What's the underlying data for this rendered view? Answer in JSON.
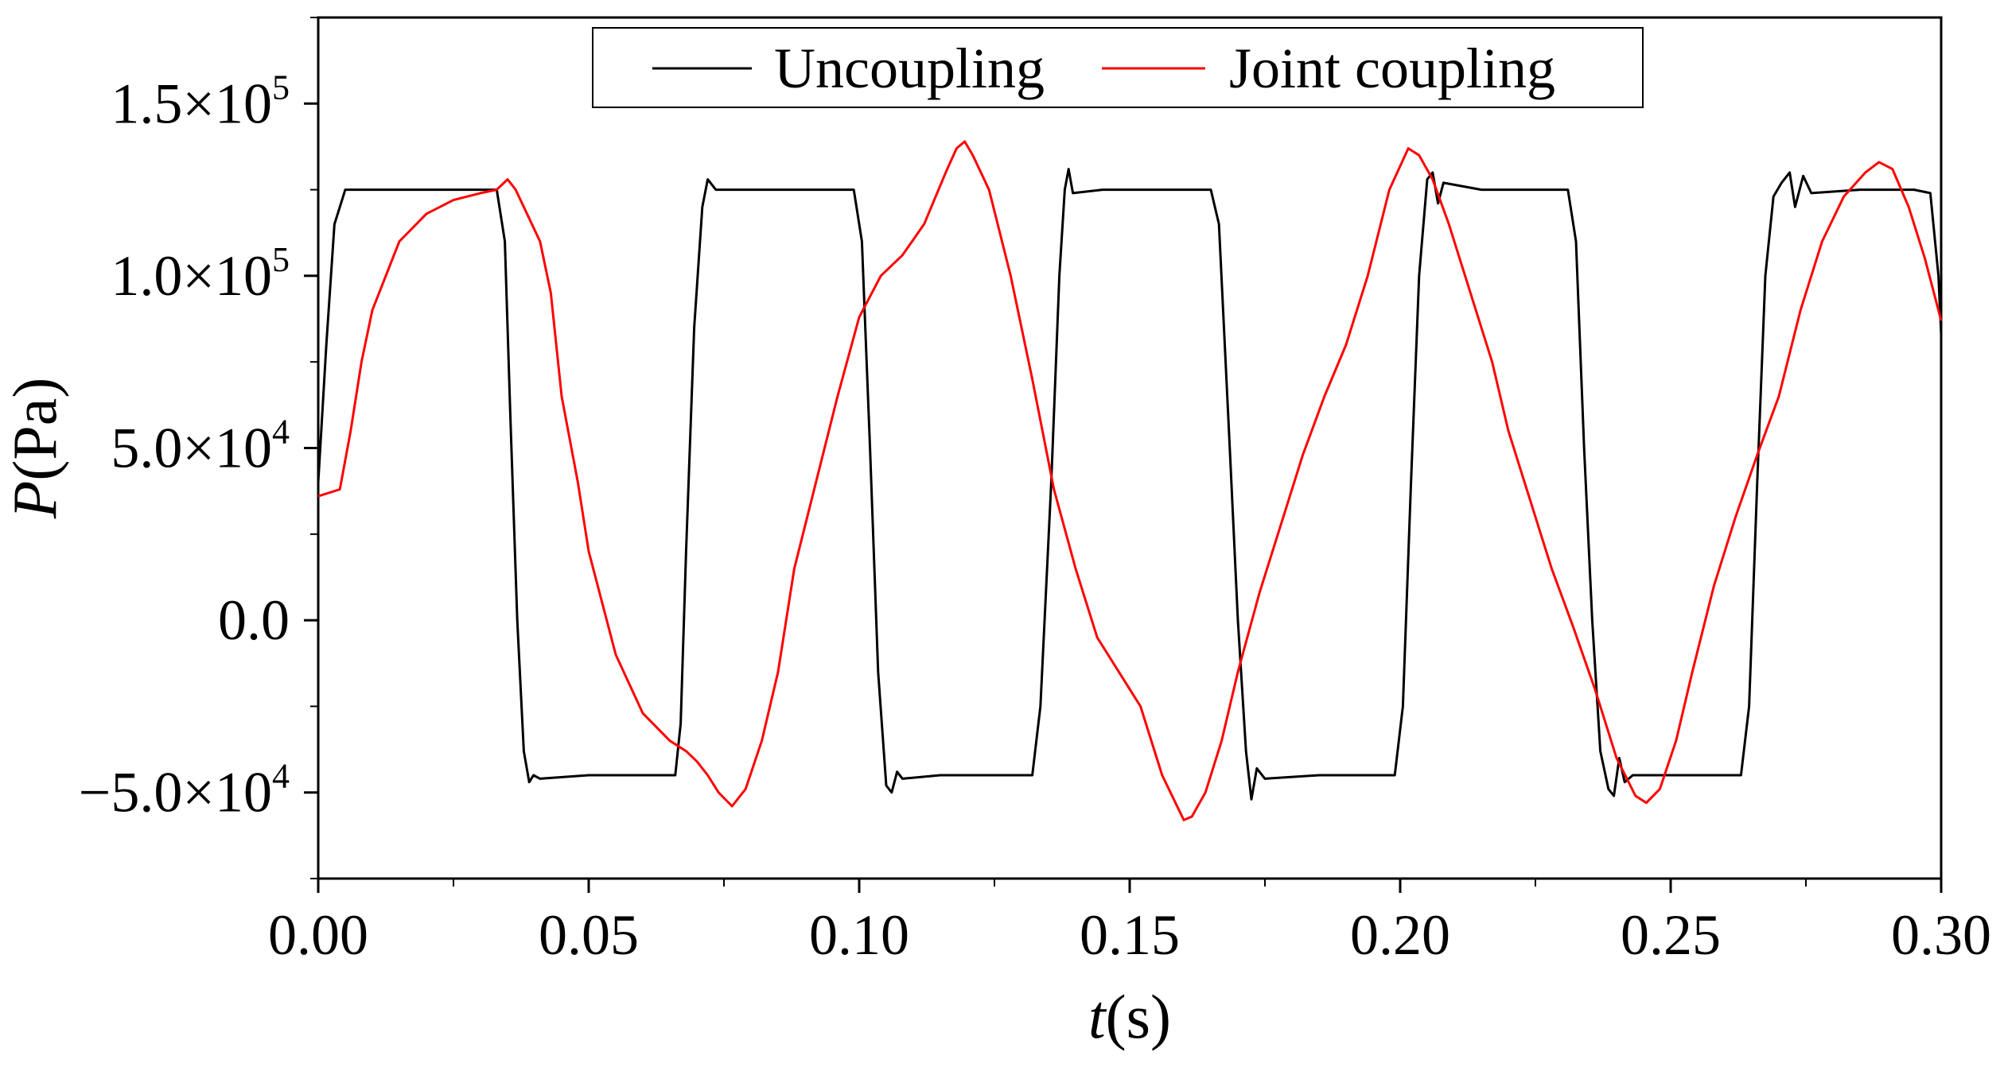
{
  "chart_data": {
    "type": "line",
    "title": "",
    "xlabel": {
      "var": "t",
      "unit": "(s)"
    },
    "ylabel": {
      "var": "P",
      "unit": "(Pa)"
    },
    "xlim": [
      0.0,
      0.3
    ],
    "ylim": [
      -75000,
      175000
    ],
    "x_ticks": [
      {
        "value": 0.0,
        "label": "0.00"
      },
      {
        "value": 0.05,
        "label": "0.05"
      },
      {
        "value": 0.1,
        "label": "0.10"
      },
      {
        "value": 0.15,
        "label": "0.15"
      },
      {
        "value": 0.2,
        "label": "0.20"
      },
      {
        "value": 0.25,
        "label": "0.25"
      },
      {
        "value": 0.3,
        "label": "0.30"
      }
    ],
    "y_ticks": [
      {
        "value": -50000,
        "mantissa": "−5.0×10",
        "exp": "4"
      },
      {
        "value": 0,
        "mantissa": "0.0",
        "exp": ""
      },
      {
        "value": 50000,
        "mantissa": "5.0×10",
        "exp": "4"
      },
      {
        "value": 100000,
        "mantissa": "1.0×10",
        "exp": "5"
      },
      {
        "value": 150000,
        "mantissa": "1.5×10",
        "exp": "5"
      }
    ],
    "grid": false,
    "legend_position": "top-center",
    "series": [
      {
        "name": "Uncoupling",
        "color": "#000000",
        "points": [
          [
            0.0,
            40000
          ],
          [
            0.0015,
            80000
          ],
          [
            0.003,
            115000
          ],
          [
            0.005,
            125000
          ],
          [
            0.01,
            125000
          ],
          [
            0.02,
            125000
          ],
          [
            0.03,
            125000
          ],
          [
            0.033,
            125000
          ],
          [
            0.0345,
            110000
          ],
          [
            0.0355,
            60000
          ],
          [
            0.0368,
            0
          ],
          [
            0.038,
            -38000
          ],
          [
            0.039,
            -47000
          ],
          [
            0.0398,
            -45000
          ],
          [
            0.041,
            -46000
          ],
          [
            0.05,
            -45000
          ],
          [
            0.06,
            -45000
          ],
          [
            0.066,
            -45000
          ],
          [
            0.067,
            -30000
          ],
          [
            0.068,
            20000
          ],
          [
            0.0695,
            85000
          ],
          [
            0.071,
            120000
          ],
          [
            0.072,
            128000
          ],
          [
            0.0735,
            125000
          ],
          [
            0.08,
            125000
          ],
          [
            0.09,
            125000
          ],
          [
            0.099,
            125000
          ],
          [
            0.1005,
            110000
          ],
          [
            0.102,
            50000
          ],
          [
            0.1035,
            -15000
          ],
          [
            0.105,
            -48000
          ],
          [
            0.106,
            -50000
          ],
          [
            0.107,
            -44000
          ],
          [
            0.108,
            -46000
          ],
          [
            0.115,
            -45000
          ],
          [
            0.125,
            -45000
          ],
          [
            0.132,
            -45000
          ],
          [
            0.1335,
            -25000
          ],
          [
            0.1355,
            40000
          ],
          [
            0.137,
            100000
          ],
          [
            0.138,
            125000
          ],
          [
            0.1387,
            131000
          ],
          [
            0.1395,
            124000
          ],
          [
            0.145,
            125000
          ],
          [
            0.155,
            125000
          ],
          [
            0.165,
            125000
          ],
          [
            0.1665,
            115000
          ],
          [
            0.1685,
            50000
          ],
          [
            0.17,
            0
          ],
          [
            0.1715,
            -38000
          ],
          [
            0.1725,
            -52000
          ],
          [
            0.1735,
            -43000
          ],
          [
            0.175,
            -46000
          ],
          [
            0.185,
            -45000
          ],
          [
            0.195,
            -45000
          ],
          [
            0.199,
            -45000
          ],
          [
            0.2005,
            -25000
          ],
          [
            0.202,
            40000
          ],
          [
            0.2035,
            100000
          ],
          [
            0.205,
            128000
          ],
          [
            0.206,
            130000
          ],
          [
            0.207,
            121000
          ],
          [
            0.208,
            127000
          ],
          [
            0.215,
            125000
          ],
          [
            0.225,
            125000
          ],
          [
            0.231,
            125000
          ],
          [
            0.2325,
            110000
          ],
          [
            0.234,
            50000
          ],
          [
            0.2355,
            0
          ],
          [
            0.237,
            -38000
          ],
          [
            0.2385,
            -49000
          ],
          [
            0.2395,
            -51000
          ],
          [
            0.2405,
            -40000
          ],
          [
            0.2415,
            -47000
          ],
          [
            0.243,
            -45000
          ],
          [
            0.255,
            -45000
          ],
          [
            0.263,
            -45000
          ],
          [
            0.2645,
            -25000
          ],
          [
            0.266,
            40000
          ],
          [
            0.2675,
            100000
          ],
          [
            0.269,
            123000
          ],
          [
            0.2705,
            127000
          ],
          [
            0.272,
            130000
          ],
          [
            0.273,
            120000
          ],
          [
            0.2745,
            129000
          ],
          [
            0.276,
            124000
          ],
          [
            0.285,
            125000
          ],
          [
            0.295,
            125000
          ],
          [
            0.298,
            124000
          ],
          [
            0.2995,
            100000
          ],
          [
            0.3,
            83000
          ]
        ]
      },
      {
        "name": "Joint coupling",
        "color": "#ff0000",
        "points": [
          [
            0.0,
            36000
          ],
          [
            0.004,
            38000
          ],
          [
            0.006,
            55000
          ],
          [
            0.008,
            75000
          ],
          [
            0.01,
            90000
          ],
          [
            0.015,
            110000
          ],
          [
            0.02,
            118000
          ],
          [
            0.025,
            122000
          ],
          [
            0.03,
            124000
          ],
          [
            0.033,
            125000
          ],
          [
            0.035,
            128000
          ],
          [
            0.0365,
            125000
          ],
          [
            0.038,
            120000
          ],
          [
            0.041,
            110000
          ],
          [
            0.043,
            95000
          ],
          [
            0.045,
            65000
          ],
          [
            0.048,
            40000
          ],
          [
            0.05,
            20000
          ],
          [
            0.055,
            -10000
          ],
          [
            0.06,
            -27000
          ],
          [
            0.065,
            -35000
          ],
          [
            0.068,
            -38000
          ],
          [
            0.07,
            -41000
          ],
          [
            0.072,
            -45000
          ],
          [
            0.074,
            -50000
          ],
          [
            0.0765,
            -54000
          ],
          [
            0.079,
            -49000
          ],
          [
            0.082,
            -35000
          ],
          [
            0.085,
            -15000
          ],
          [
            0.088,
            15000
          ],
          [
            0.092,
            40000
          ],
          [
            0.096,
            65000
          ],
          [
            0.1,
            88000
          ],
          [
            0.104,
            100000
          ],
          [
            0.108,
            106000
          ],
          [
            0.112,
            115000
          ],
          [
            0.116,
            130000
          ],
          [
            0.118,
            137000
          ],
          [
            0.1195,
            139000
          ],
          [
            0.121,
            135000
          ],
          [
            0.124,
            125000
          ],
          [
            0.128,
            100000
          ],
          [
            0.132,
            70000
          ],
          [
            0.136,
            38000
          ],
          [
            0.14,
            15000
          ],
          [
            0.144,
            -5000
          ],
          [
            0.148,
            -15000
          ],
          [
            0.152,
            -25000
          ],
          [
            0.156,
            -45000
          ],
          [
            0.16,
            -58000
          ],
          [
            0.1615,
            -57000
          ],
          [
            0.164,
            -50000
          ],
          [
            0.167,
            -35000
          ],
          [
            0.17,
            -15000
          ],
          [
            0.174,
            8000
          ],
          [
            0.178,
            28000
          ],
          [
            0.182,
            48000
          ],
          [
            0.186,
            65000
          ],
          [
            0.19,
            80000
          ],
          [
            0.194,
            100000
          ],
          [
            0.198,
            125000
          ],
          [
            0.2015,
            137000
          ],
          [
            0.2035,
            135000
          ],
          [
            0.206,
            128000
          ],
          [
            0.209,
            115000
          ],
          [
            0.213,
            95000
          ],
          [
            0.217,
            75000
          ],
          [
            0.22,
            55000
          ],
          [
            0.224,
            35000
          ],
          [
            0.228,
            15000
          ],
          [
            0.232,
            -2000
          ],
          [
            0.236,
            -20000
          ],
          [
            0.24,
            -40000
          ],
          [
            0.2435,
            -51000
          ],
          [
            0.2455,
            -53000
          ],
          [
            0.248,
            -49000
          ],
          [
            0.251,
            -35000
          ],
          [
            0.254,
            -15000
          ],
          [
            0.258,
            10000
          ],
          [
            0.262,
            30000
          ],
          [
            0.266,
            48000
          ],
          [
            0.27,
            65000
          ],
          [
            0.274,
            90000
          ],
          [
            0.278,
            110000
          ],
          [
            0.282,
            123000
          ],
          [
            0.286,
            130000
          ],
          [
            0.2885,
            133000
          ],
          [
            0.291,
            131000
          ],
          [
            0.294,
            120000
          ],
          [
            0.297,
            105000
          ],
          [
            0.3,
            87000
          ]
        ]
      }
    ]
  }
}
